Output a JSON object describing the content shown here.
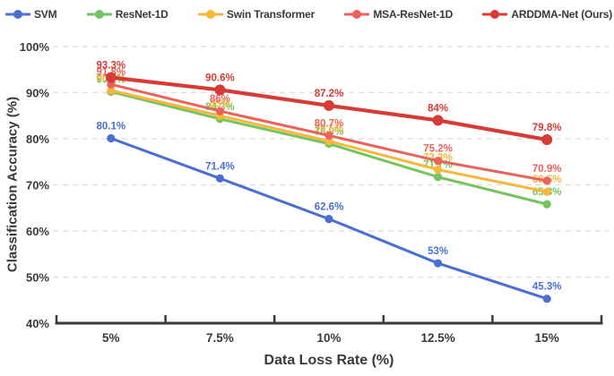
{
  "chart_data": {
    "type": "line",
    "title": "",
    "xlabel": "Data Loss Rate (%)",
    "ylabel": "Classification Accuracy (%)",
    "x_tick_labels": [
      "5%",
      "7.5%",
      "10%",
      "12.5%",
      "15%"
    ],
    "x_values": [
      5,
      7.5,
      10,
      12.5,
      15
    ],
    "y_ticks": [
      40,
      50,
      60,
      70,
      80,
      90,
      100
    ],
    "y_tick_labels": [
      "40%",
      "50%",
      "60%",
      "70%",
      "80%",
      "90%",
      "100%"
    ],
    "ylim": [
      40,
      100
    ],
    "grid": "horizontal-dashed",
    "legend_position": "top",
    "series": [
      {
        "name": "SVM",
        "color": "#4a6fd1",
        "values": [
          80.1,
          71.4,
          62.6,
          53.0,
          45.3
        ],
        "point_labels": [
          "80.1%",
          "71.4%",
          "62.6%",
          "53%",
          "45.3%"
        ]
      },
      {
        "name": "ResNet-1D",
        "color": "#77c35f",
        "values": [
          90.2,
          84.3,
          78.9,
          71.7,
          65.8
        ],
        "point_labels": [
          "90.2%",
          "84.3%",
          "78.9%",
          "71.7%",
          "65.8%"
        ]
      },
      {
        "name": "Swin Transformer",
        "color": "#f6b73c",
        "values": [
          90.5,
          85.0,
          79.5,
          73.3,
          68.5
        ],
        "point_labels": [
          "90.5%",
          "85%",
          "79.5%",
          "73.3%",
          "68.5%"
        ]
      },
      {
        "name": "MSA-ResNet-1D",
        "color": "#e9625c",
        "values": [
          91.8,
          86.0,
          80.7,
          75.2,
          70.9
        ],
        "point_labels": [
          "91.8%",
          "86%",
          "80.7%",
          "75.2%",
          "70.9%"
        ]
      },
      {
        "name": "ARDDMA-Net (Ours)",
        "color": "#d63b35",
        "values": [
          93.3,
          90.6,
          87.2,
          84.0,
          79.8
        ],
        "point_labels": [
          "93.3%",
          "90.6%",
          "87.2%",
          "84%",
          "79.8%"
        ]
      }
    ]
  },
  "colors": {
    "axis": "#3a3a3a",
    "grid": "#dcdcdc",
    "tick_text": "#3a3a3a",
    "background": "#ffffff"
  }
}
